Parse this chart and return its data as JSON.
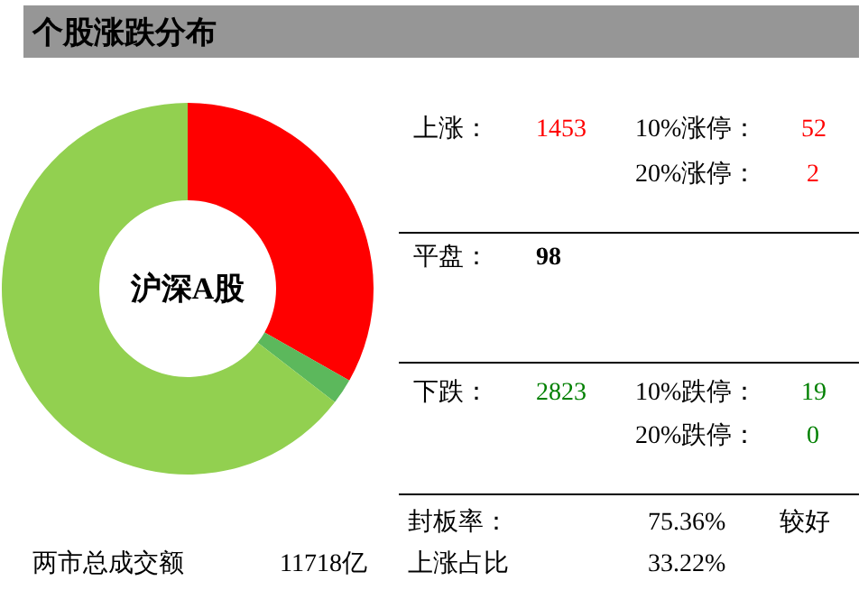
{
  "chart_data": [
    {
      "type": "donut",
      "title": "个股涨跌分布",
      "categories": [
        null,
        null,
        null
      ],
      "values": [
        33.22,
        2.24,
        64.54
      ],
      "colors": [
        "#ff0000",
        "#5cb85c",
        "#92d050"
      ],
      "annotations": [
        "沪深A股"
      ]
    },
    {
      "type": "other",
      "annotations": [
        "上涨：",
        "1453",
        "10%涨停：",
        "52",
        "20%涨停：",
        "2",
        "平盘：",
        "98",
        "下跌：",
        "2823",
        "10%跌停：",
        "19",
        "20%跌停：",
        "0",
        "封板率：",
        "75.36%",
        "较好",
        "上涨占比",
        "33.22%",
        "两市总成交额",
        "11718亿"
      ]
    }
  ]
}
